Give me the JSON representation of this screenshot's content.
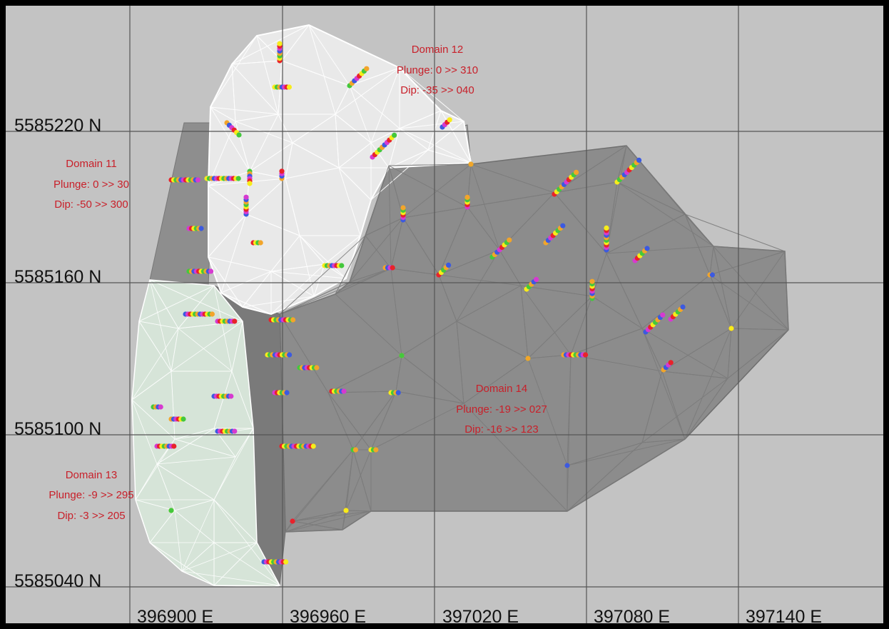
{
  "grid_labels": {
    "northing": [
      "5585220 N",
      "5585160 N",
      "5585100 N",
      "5585040 N"
    ],
    "easting": [
      "396900 E",
      "396960 E",
      "397020 E",
      "397080 E",
      "397140 E"
    ]
  },
  "domains": [
    {
      "name": "Domain 11",
      "plunge": "Plunge:  0 >> 30",
      "dip": "Dip:  -50 >> 300"
    },
    {
      "name": "Domain 12",
      "plunge": "Plunge:  0 >> 310",
      "dip": "Dip:  -35 >> 040"
    },
    {
      "name": "Domain 13",
      "plunge": "Plunge:  -9 >> 295",
      "dip": "Dip:  -3 >> 205"
    },
    {
      "name": "Domain 14",
      "plunge": "Plunge:  -19 >> 027",
      "dip": "Dip:  -16 >> 123"
    }
  ],
  "colors": {
    "background": "#c3c3c3",
    "border": "#000000",
    "grid_line": "#555555",
    "domain_11": "#8e8e8e",
    "domain_12": "#e9e9e9",
    "domain_13": "#d6e4d8",
    "domain_14": "#8c8c8c",
    "mesh_light": "#ffffff",
    "annotation_text": "#c8202a",
    "sample_colors": [
      "#e8232a",
      "#f7ec1a",
      "#44c83c",
      "#f2a52a",
      "#3c5ae0",
      "#d63ad0"
    ]
  }
}
